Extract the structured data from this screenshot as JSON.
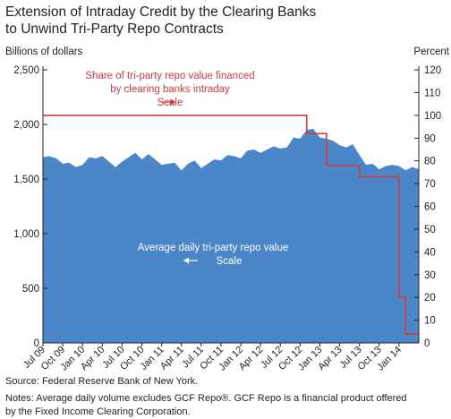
{
  "title_line1": "Extension of Intraday Credit by the Clearing Banks",
  "title_line2": "to Unwind Tri-Party Repo Contracts",
  "left_axis_title": "Billions of dollars",
  "right_axis_title": "Percent",
  "source": "Source: Federal Reserve Bank of New York.",
  "notes_line1": "Notes: Average daily volume excludes GCF Repo®. GCF Repo is a financial product offered",
  "notes_line2": "by the Fixed Income Clearing Corporation.",
  "annotations": {
    "share_line1": "Share of tri-party repo value financed",
    "share_line2": "by clearing banks intraday",
    "share_line3": "Scale",
    "avg_line1": "Average daily tri-party repo value",
    "avg_line2": "Scale"
  },
  "colors": {
    "area": "#4a86c8",
    "line": "#d73a3a",
    "text": "#231f20"
  },
  "chart_data": {
    "type": "area",
    "x_start": "Jul 09",
    "x_end": "Apr 14",
    "x_ticks": [
      "Jul 09",
      "Oct 09",
      "Jan 10",
      "Apr 10",
      "Jul 10",
      "Oct 10",
      "Jan 11",
      "Apr 11",
      "Jul 11",
      "Oct 11",
      "Jan 12",
      "Apr 12",
      "Jul 12",
      "Oct 12",
      "Jan 13",
      "Apr 13",
      "Jul 13",
      "Oct 13",
      "Jan 14"
    ],
    "left_axis": {
      "ylim": [
        0,
        2500
      ],
      "ticks": [
        "0",
        "500",
        "1,000",
        "1,500",
        "2,000",
        "2,500"
      ]
    },
    "right_axis": {
      "ylim": [
        0,
        120
      ],
      "ticks": [
        "0",
        "10",
        "20",
        "30",
        "40",
        "50",
        "60",
        "70",
        "80",
        "90",
        "100",
        "110",
        "120"
      ]
    },
    "series": [
      {
        "axis": "left",
        "values": [
          1700,
          1710,
          1690,
          1640,
          1650,
          1610,
          1630,
          1700,
          1690,
          1710,
          1660,
          1610,
          1660,
          1700,
          1740,
          1680,
          1730,
          1680,
          1630,
          1640,
          1650,
          1580,
          1640,
          1670,
          1600,
          1640,
          1680,
          1670,
          1720,
          1710,
          1690,
          1760,
          1770,
          1740,
          1770,
          1800,
          1780,
          1790,
          1880,
          1870,
          1950,
          1960,
          1880,
          1870,
          1850,
          1810,
          1790,
          1820,
          1720,
          1630,
          1640,
          1590,
          1620,
          1630,
          1620,
          1580,
          1610,
          1590
        ]
      },
      {
        "axis": "right",
        "values": [
          100,
          100,
          100,
          100,
          100,
          100,
          100,
          100,
          100,
          100,
          100,
          100,
          100,
          100,
          100,
          100,
          100,
          100,
          100,
          100,
          100,
          100,
          100,
          100,
          100,
          100,
          100,
          100,
          100,
          100,
          100,
          100,
          100,
          100,
          100,
          100,
          100,
          100,
          100,
          100,
          92,
          92,
          92,
          78,
          78,
          78,
          78,
          78,
          73,
          73,
          73,
          73,
          73,
          73,
          20,
          4,
          4,
          4
        ]
      }
    ]
  }
}
